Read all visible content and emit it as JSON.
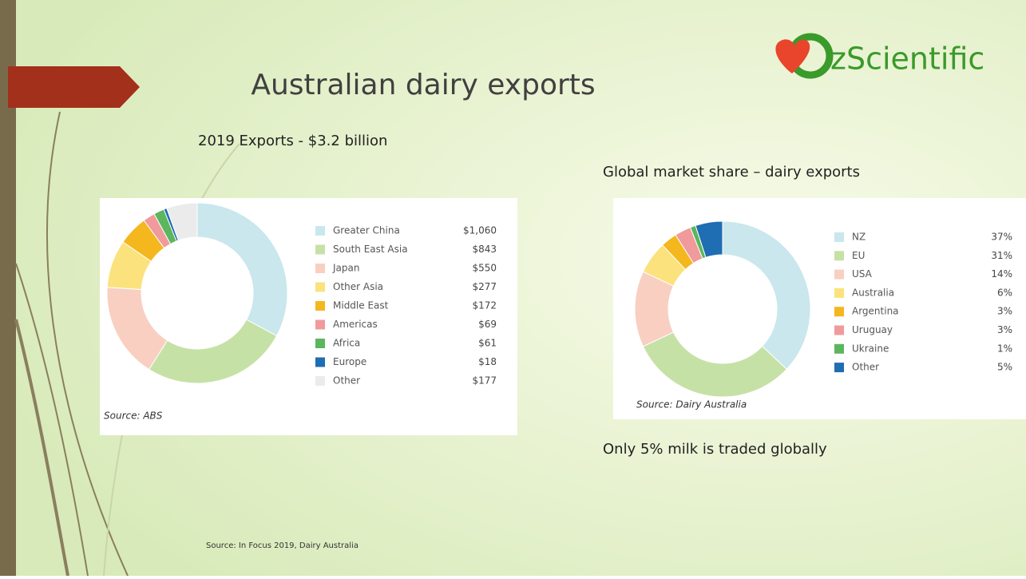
{
  "slide": {
    "title": "Australian dairy exports",
    "logo_text": "zScientific",
    "left_heading": "2019 Exports - $3.2 billion",
    "right_heading": "Global market share – dairy exports",
    "note": "Only 5% milk is traded globally",
    "footer": "Source: In Focus 2019, Dairy Australia"
  },
  "chart_data": [
    {
      "type": "donut",
      "source": "Source: ABS",
      "categories": [
        "Greater China",
        "South East Asia",
        "Japan",
        "Other Asia",
        "Middle East",
        "Americas",
        "Africa",
        "Europe",
        "Other"
      ],
      "values": [
        1060,
        843,
        550,
        277,
        172,
        69,
        61,
        18,
        177
      ],
      "value_labels": [
        "$1,060",
        "$843",
        "$550",
        "$277",
        "$172",
        "$69",
        "$61",
        "$18",
        "$177"
      ],
      "colors": [
        "#c9e7ec",
        "#c6e1a6",
        "#f8cfc1",
        "#fbe27c",
        "#f4b71e",
        "#f09a9c",
        "#5bb65d",
        "#1f6db3",
        "#ebebeb"
      ]
    },
    {
      "type": "donut",
      "source": "Source: Dairy Australia",
      "categories": [
        "NZ",
        "EU",
        "USA",
        "Australia",
        "Argentina",
        "Uruguay",
        "Ukraine",
        "Other"
      ],
      "values": [
        37,
        31,
        14,
        6,
        3,
        3,
        1,
        5
      ],
      "value_labels": [
        "37%",
        "31%",
        "14%",
        "6%",
        "3%",
        "3%",
        "1%",
        "5%"
      ],
      "colors": [
        "#c9e7ec",
        "#c6e1a6",
        "#f8cfc1",
        "#fbe27c",
        "#f4b71e",
        "#f09a9c",
        "#5bb65d",
        "#1f6db3"
      ]
    }
  ]
}
